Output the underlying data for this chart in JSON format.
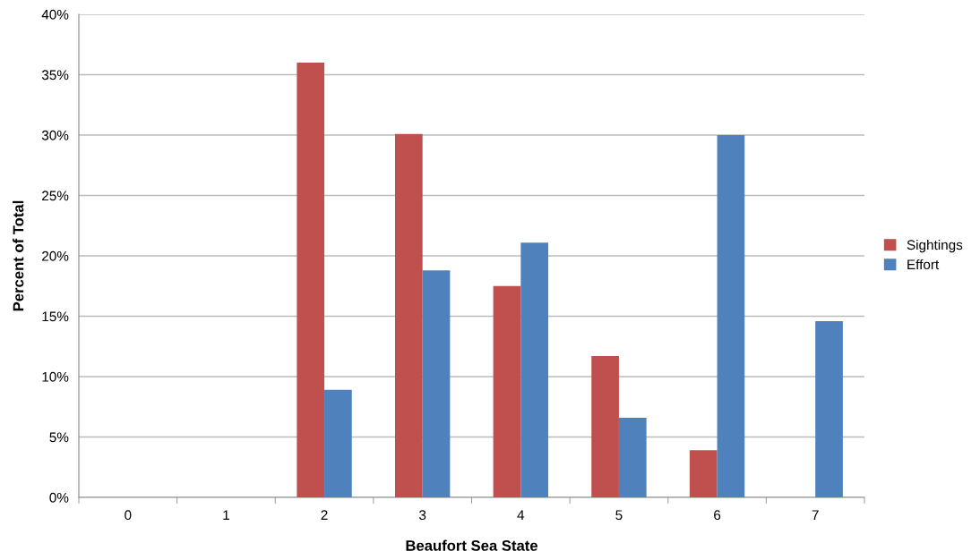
{
  "chart_data": {
    "type": "bar",
    "xlabel": "Beaufort Sea State",
    "ylabel": "Percent of Total",
    "categories": [
      "0",
      "1",
      "2",
      "3",
      "4",
      "5",
      "6",
      "7"
    ],
    "series": [
      {
        "name": "Sightings",
        "color": "#c0504d",
        "values": [
          null,
          null,
          36,
          30.1,
          17.5,
          11.7,
          3.9,
          null
        ]
      },
      {
        "name": "Effort",
        "color": "#4f81bd",
        "values": [
          null,
          null,
          8.9,
          18.8,
          21.1,
          6.6,
          30,
          14.6
        ]
      }
    ],
    "ylim": [
      0,
      40
    ],
    "yticks": [
      {
        "value": 0,
        "label": "0%"
      },
      {
        "value": 5,
        "label": "5%"
      },
      {
        "value": 10,
        "label": "10%"
      },
      {
        "value": 15,
        "label": "15%"
      },
      {
        "value": 20,
        "label": "20%"
      },
      {
        "value": 25,
        "label": "25%"
      },
      {
        "value": 30,
        "label": "30%"
      },
      {
        "value": 35,
        "label": "35%"
      },
      {
        "value": 40,
        "label": "40%"
      }
    ],
    "grid": "y",
    "legend": "right"
  }
}
